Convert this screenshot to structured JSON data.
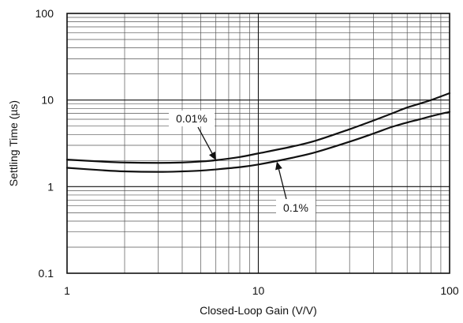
{
  "chart_data": {
    "type": "line",
    "xlabel": "Closed-Loop Gain (V/V)",
    "ylabel": "Settling Time (µs)",
    "x_scale": "log",
    "y_scale": "log",
    "xlim": [
      1,
      100
    ],
    "ylim": [
      0.1,
      100
    ],
    "grid": true,
    "x_ticks": [
      "1",
      "10",
      "100"
    ],
    "y_ticks": [
      "0.1",
      "1",
      "10",
      "100"
    ],
    "series": [
      {
        "name": "0.01%",
        "x": [
          1,
          1.5,
          2,
          3,
          4,
          5,
          6,
          8,
          10,
          15,
          20,
          30,
          40,
          50,
          60,
          70,
          80,
          100
        ],
        "y": [
          2.05,
          1.95,
          1.9,
          1.88,
          1.9,
          1.95,
          2.02,
          2.2,
          2.42,
          2.9,
          3.4,
          4.6,
          5.8,
          7.0,
          8.2,
          9.1,
          10.0,
          12.0
        ]
      },
      {
        "name": "0.1%",
        "x": [
          1,
          1.5,
          2,
          3,
          4,
          5,
          6,
          8,
          10,
          15,
          20,
          30,
          40,
          50,
          60,
          70,
          80,
          100
        ],
        "y": [
          1.65,
          1.55,
          1.5,
          1.48,
          1.5,
          1.53,
          1.58,
          1.68,
          1.8,
          2.15,
          2.5,
          3.3,
          4.1,
          4.9,
          5.5,
          6.0,
          6.5,
          7.3
        ]
      }
    ],
    "annotations": [
      {
        "text": "0.01%",
        "series": "0.01%",
        "arrow_to": [
          6.0,
          2.02
        ]
      },
      {
        "text": "0.1%",
        "series": "0.1%",
        "arrow_to": [
          12.5,
          1.95
        ]
      }
    ]
  }
}
